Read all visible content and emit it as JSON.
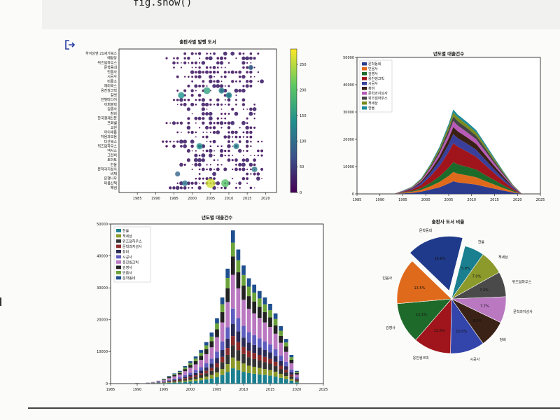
{
  "code": {
    "line": "fig.show()"
  },
  "icons": {
    "exit": "exit-icon"
  },
  "chart_data": [
    {
      "type": "scatter",
      "title": "출판사별 발행 도서",
      "xlabel": "",
      "ylabel": "",
      "xlim": [
        1980,
        2023
      ],
      "xticks": [
        1985,
        1990,
        1995,
        2000,
        2005,
        2010,
        2015,
        2020
      ],
      "publishers": [
        "하이상앤 21세기북스",
        "예림당",
        "위즈덤하우스",
        "문학동네",
        "민음사",
        "시공사",
        "비룡소",
        "재미북스",
        "웅진씽크빅",
        "길벗",
        "한빛미디어",
        "이퍼블릭",
        "김영사",
        "창비",
        "한국경제신문",
        "프뢰벨",
        "교원",
        "아이세움",
        "자음과모음",
        "다산북스",
        "위즈덤하우스",
        "넥서스",
        "그린비",
        "토마토",
        "한울",
        "문학과지성사",
        "비채",
        "은행나무",
        "마음산책",
        "해냄"
      ],
      "colorbar": {
        "ticks": [
          0,
          50,
          100,
          150,
          200,
          250
        ],
        "max": 280,
        "colormap": "viridis"
      },
      "points": [
        {
          "year": 2005,
          "row": 28,
          "count": 260
        },
        {
          "year": 2009,
          "row": 28,
          "count": 200
        },
        {
          "year": 2002,
          "row": 20,
          "count": 140
        },
        {
          "year": 1996,
          "row": 26,
          "count": 90
        },
        {
          "year": 1998,
          "row": 28,
          "count": 110
        },
        {
          "year": 2004,
          "row": 8,
          "count": 160
        },
        {
          "year": 2012,
          "row": 20,
          "count": 120
        },
        {
          "year": 2017,
          "row": 25,
          "count": 110
        },
        {
          "year": 2016,
          "row": 3,
          "count": 90
        },
        {
          "year": 2008,
          "row": 8,
          "count": 120
        },
        {
          "year": 2010,
          "row": 9,
          "count": 130
        },
        {
          "year": 1997,
          "row": 9,
          "count": 140
        }
      ]
    },
    {
      "type": "area",
      "title": "년도별 대출건수",
      "xlim": [
        1985,
        2025
      ],
      "ylim": [
        0,
        50000
      ],
      "xticks": [
        1985,
        1990,
        1995,
        2000,
        2005,
        2010,
        2015,
        2020,
        2025
      ],
      "yticks": [
        0,
        10000,
        20000,
        30000,
        40000,
        50000
      ],
      "x": [
        1993,
        1995,
        1997,
        1999,
        2001,
        2003,
        2005,
        2006,
        2007,
        2009,
        2011,
        2013,
        2015,
        2017,
        2019,
        2021
      ],
      "series": [
        {
          "name": "문학동네",
          "color": "#2b3c8f",
          "values": [
            0,
            200,
            400,
            800,
            1600,
            2400,
            3800,
            4600,
            4200,
            3800,
            3400,
            2600,
            1900,
            1200,
            500,
            0
          ]
        },
        {
          "name": "민음사",
          "color": "#e06a1c",
          "values": [
            0,
            200,
            400,
            700,
            1200,
            2000,
            2800,
            3400,
            3200,
            3000,
            2700,
            2100,
            1500,
            900,
            400,
            0
          ]
        },
        {
          "name": "김영사",
          "color": "#1d6b2a",
          "values": [
            0,
            150,
            300,
            600,
            1200,
            2000,
            3000,
            3600,
            3400,
            3100,
            2800,
            2200,
            1600,
            1000,
            400,
            0
          ]
        },
        {
          "name": "웅진씽크빅",
          "color": "#a0151b",
          "values": [
            0,
            200,
            500,
            1200,
            2400,
            3800,
            5800,
            7000,
            6500,
            5600,
            4700,
            3600,
            2500,
            1500,
            600,
            0
          ]
        },
        {
          "name": "시공사",
          "color": "#3a3f9c",
          "values": [
            0,
            150,
            300,
            700,
            1300,
            2000,
            2800,
            3300,
            3100,
            2900,
            2600,
            2000,
            1400,
            900,
            400,
            0
          ]
        },
        {
          "name": "창비",
          "color": "#3a1f14",
          "values": [
            0,
            100,
            200,
            500,
            900,
            1500,
            2200,
            2600,
            2500,
            2300,
            2100,
            1700,
            1200,
            800,
            300,
            0
          ]
        },
        {
          "name": "문학과지성사",
          "color": "#b85ab8",
          "values": [
            0,
            80,
            200,
            400,
            800,
            1200,
            1800,
            2200,
            2100,
            1900,
            1700,
            1400,
            1000,
            600,
            300,
            0
          ]
        },
        {
          "name": "위즈덤하우스",
          "color": "#444444",
          "values": [
            0,
            60,
            150,
            300,
            600,
            1000,
            1400,
            1700,
            1600,
            1500,
            1300,
            1100,
            800,
            500,
            200,
            0
          ]
        },
        {
          "name": "책세상",
          "color": "#7a8a1c",
          "values": [
            0,
            60,
            150,
            300,
            500,
            800,
            1200,
            1400,
            1400,
            1300,
            1200,
            900,
            700,
            400,
            200,
            0
          ]
        },
        {
          "name": "한울",
          "color": "#1b8a9a",
          "values": [
            0,
            50,
            100,
            200,
            400,
            600,
            900,
            1100,
            1000,
            950,
            850,
            700,
            500,
            300,
            100,
            0
          ]
        }
      ],
      "legend": "top-left"
    },
    {
      "type": "bar",
      "stacked": true,
      "title": "년도별 대출건수",
      "xlim": [
        1985,
        2025
      ],
      "ylim": [
        0,
        50000
      ],
      "xticks": [
        1985,
        1990,
        1995,
        2000,
        2005,
        2010,
        2015,
        2020,
        2025
      ],
      "yticks": [
        0,
        10000,
        20000,
        30000,
        40000,
        50000
      ],
      "x": [
        1990,
        1992,
        1993,
        1994,
        1995,
        1996,
        1997,
        1998,
        1999,
        2000,
        2001,
        2002,
        2003,
        2004,
        2005,
        2006,
        2007,
        2008,
        2009,
        2010,
        2011,
        2012,
        2013,
        2014,
        2015,
        2016,
        2017,
        2018,
        2019,
        2020
      ],
      "totals": [
        200,
        300,
        500,
        900,
        1500,
        2400,
        3200,
        4000,
        5500,
        7000,
        8500,
        10500,
        13000,
        16000,
        20500,
        27000,
        36000,
        48000,
        42000,
        37000,
        33000,
        31000,
        29000,
        27000,
        25000,
        22000,
        18000,
        14000,
        9000,
        4000
      ],
      "series": [
        {
          "name": "한울",
          "color": "#1a7f8f",
          "share": 0.1
        },
        {
          "name": "책세상",
          "color": "#8b9a2a",
          "share": 0.07
        },
        {
          "name": "위즈덤하우스",
          "color": "#333333",
          "share": 0.08
        },
        {
          "name": "문학과지성사",
          "color": "#8a2a2a",
          "share": 0.06
        },
        {
          "name": "창비",
          "color": "#2a2a55",
          "share": 0.08
        },
        {
          "name": "시공사",
          "color": "#5d5dbf",
          "share": 0.1
        },
        {
          "name": "웅진씽크빅",
          "color": "#b978c0",
          "share": 0.22
        },
        {
          "name": "김영사",
          "color": "#222222",
          "share": 0.12
        },
        {
          "name": "민음사",
          "color": "#6ba33a",
          "share": 0.09
        },
        {
          "name": "문학동네",
          "color": "#1f4f8f",
          "share": 0.08
        }
      ],
      "legend_labels": [
        "한울",
        "책세상",
        "위즈덤하우스",
        "문학과지성사",
        "창비",
        "시공사",
        "웅진씽크빅",
        "김영사",
        "민음사",
        "문학동네"
      ],
      "legend": "top-left"
    },
    {
      "type": "pie",
      "title": "출판사 도서 비율",
      "slices": [
        {
          "label": "한울",
          "value": 5.8,
          "color": "#1a7f8f"
        },
        {
          "label": "책세상",
          "value": 7.0,
          "color": "#8b9a2a"
        },
        {
          "label": "위즈덤하우스",
          "value": 7.4,
          "color": "#4a4a4a"
        },
        {
          "label": "문학과지성사",
          "value": 7.7,
          "color": "#b978c0"
        },
        {
          "label": "창비",
          "value": 8.0,
          "color": "#3a2216"
        },
        {
          "label": "시공사",
          "value": 10.0,
          "color": "#3344aa"
        },
        {
          "label": "웅진씽크빅",
          "value": 11.0,
          "color": "#a0151b"
        },
        {
          "label": "김영사",
          "value": 12.1,
          "color": "#1e6a2a"
        },
        {
          "label": "민음사",
          "value": 13.5,
          "color": "#e06a1c"
        },
        {
          "label": "문학동네",
          "value": 16.6,
          "color": "#1f3a8a",
          "explode": true
        }
      ]
    }
  ]
}
